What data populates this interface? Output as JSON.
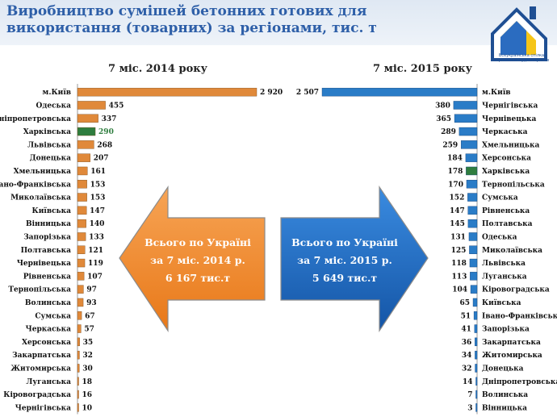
{
  "title": "Виробництво сумішей бетонних готових для використання (товарних) за регіонами, тис. т",
  "logo_caption": "Всеукраїнська спілка виробників будматеріалів",
  "colors": {
    "left_bar": "#e0893a",
    "right_bar": "#2a7cc7",
    "highlight": "#2e7d3e",
    "left_arrow": "#f28a2e",
    "right_arrow": "#1f6fc4",
    "title": "#2e5fa8"
  },
  "chart_data": [
    {
      "type": "bar",
      "orientation": "horizontal",
      "title": "7 міс. 2014 року",
      "highlight_category": "Харківська",
      "categories": [
        "м.Київ",
        "Одеська",
        "Дніпропетровська",
        "Харківська",
        "Львівська",
        "Донецька",
        "Хмельницька",
        "Івано-Франківська",
        "Миколаївська",
        "Київська",
        "Вінницька",
        "Запорізька",
        "Полтавська",
        "Чернівецька",
        "Рівненська",
        "Тернопільська",
        "Волинська",
        "Сумська",
        "Черкаська",
        "Херсонська",
        "Закарпатська",
        "Житомирська",
        "Луганська",
        "Кіровоградська",
        "Чернігівська"
      ],
      "values": [
        2920,
        455,
        337,
        290,
        268,
        207,
        161,
        153,
        153,
        147,
        140,
        133,
        121,
        119,
        107,
        97,
        93,
        67,
        57,
        35,
        32,
        30,
        18,
        16,
        10
      ],
      "value_labels": [
        "2 920",
        "455",
        "337",
        "290",
        "268",
        "207",
        "161",
        "153",
        "153",
        "147",
        "140",
        "133",
        "121",
        "119",
        "107",
        "97",
        "93",
        "67",
        "57",
        "35",
        "32",
        "30",
        "18",
        "16",
        "10"
      ]
    },
    {
      "type": "bar",
      "orientation": "horizontal",
      "title": "7 міс. 2015 року",
      "highlight_category": "Харківська",
      "categories": [
        "м.Київ",
        "Чернігівська",
        "Чернівецька",
        "Черкаська",
        "Хмельницька",
        "Херсонська",
        "Харківська",
        "Тернопільська",
        "Сумська",
        "Рівненська",
        "Полтавська",
        "Одеська",
        "Миколаївська",
        "Львівська",
        "Луганська",
        "Кіровоградська",
        "Київська",
        "Івано-Франківська",
        "Запорізька",
        "Закарпатська",
        "Житомирська",
        "Донецька",
        "Дніпропетровська",
        "Волинська",
        "Вінницька"
      ],
      "values": [
        2507,
        380,
        365,
        289,
        259,
        184,
        178,
        170,
        152,
        147,
        145,
        131,
        125,
        118,
        113,
        104,
        65,
        51,
        41,
        36,
        34,
        32,
        14,
        7,
        3
      ],
      "value_labels": [
        "2 507",
        "380",
        "365",
        "289",
        "259",
        "184",
        "178",
        "170",
        "152",
        "147",
        "145",
        "131",
        "125",
        "118",
        "113",
        "104",
        "65",
        "51",
        "41",
        "36",
        "34",
        "32",
        "14",
        "7",
        "3"
      ]
    }
  ],
  "left_total": {
    "line1": "Всього по Україні",
    "line2": "за  7 міс. 2014 р.",
    "line3": "6 167 тис.т"
  },
  "right_total": {
    "line1": "Всього по Україні",
    "line2": "за 7 міс. 2015 р.",
    "line3": "5 649 тис.т"
  }
}
